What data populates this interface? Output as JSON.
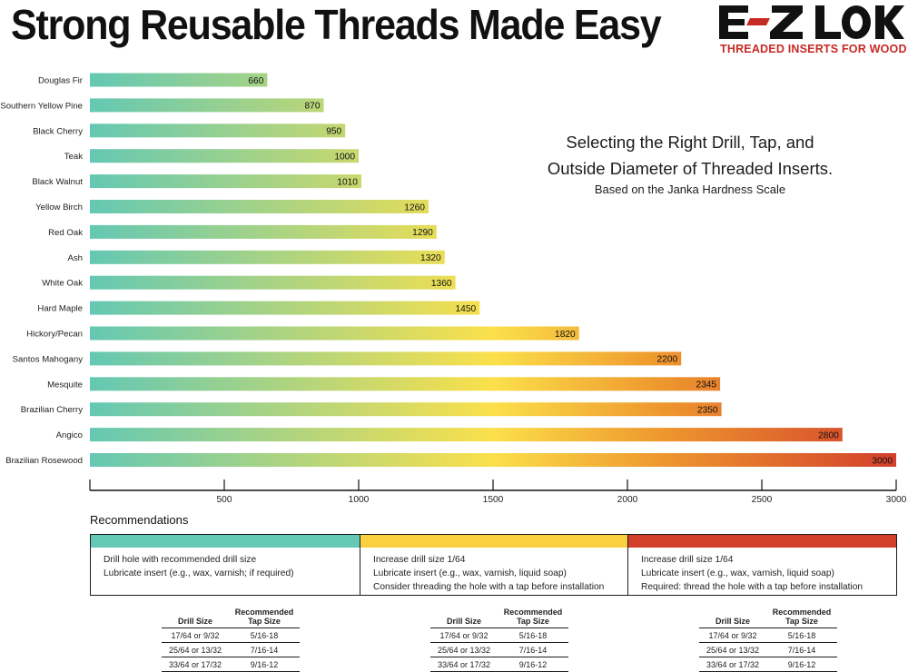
{
  "header": {
    "headline": "Strong Reusable Threads Made Easy",
    "logo_text": "E-Z LOK",
    "logo_tagline": "THREADED INSERTS FOR WOOD"
  },
  "info": {
    "line1": "Selecting the Right Drill, Tap, and",
    "line2": "Outside Diameter of Threaded Inserts.",
    "subtitle": "Based on the Janka Hardness Scale"
  },
  "colors": {
    "teal": "#64c8b4",
    "yellow": "#fbe04a",
    "orange": "#ef9a2e",
    "red": "#d2402c",
    "logo_red": "#c62a24"
  },
  "chart_data": {
    "type": "bar",
    "orientation": "horizontal",
    "categories": [
      "Douglas Fir",
      "Southern Yellow Pine",
      "Black Cherry",
      "Teak",
      "Black Walnut",
      "Yellow Birch",
      "Red Oak",
      "Ash",
      "White Oak",
      "Hard Maple",
      "Hickory/Pecan",
      "Santos Mahogany",
      "Mesquite",
      "Brazilian Cherry",
      "Angico",
      "Brazilian Rosewood"
    ],
    "values": [
      660,
      870,
      950,
      1000,
      1010,
      1260,
      1290,
      1320,
      1360,
      1450,
      1820,
      2200,
      2345,
      2350,
      2800,
      3000
    ],
    "data_labels": [
      "660",
      "870",
      "950",
      "1000",
      "1010",
      "1260",
      "1290",
      "1320",
      "1360",
      "1450",
      "1820",
      "2200",
      "2345",
      "2350",
      "2800",
      "3000"
    ],
    "xlim": [
      0,
      3000
    ],
    "xticks": [
      500,
      1000,
      1500,
      2000,
      2500,
      3000
    ],
    "xtick_labels": [
      "500",
      "1000",
      "1500",
      "2000",
      "2500",
      "3000"
    ],
    "color_scale": "teal-yellow-orange-red gradient by value",
    "grid": false,
    "legend": "none"
  },
  "recommendations": {
    "title": "Recommendations",
    "boxes": [
      {
        "color": "#64c8b4",
        "lines": [
          "Drill hole with recommended drill size",
          "Lubricate insert (e.g., wax, varnish; if required)"
        ]
      },
      {
        "color": "#fbd040",
        "lines": [
          "Increase drill size 1/64",
          "Lubricate insert (e.g., wax, varnish, liquid soap)",
          "Consider threading the hole with a tap before installation"
        ]
      },
      {
        "color": "#d2402c",
        "lines": [
          "Increase drill size 1/64",
          "Lubricate insert (e.g., wax, varnish, liquid soap)",
          "Required: thread the hole with a tap before installation"
        ]
      }
    ],
    "tables": [
      {
        "drill_header": "Drill Size",
        "tap_header_1": "Recommended",
        "tap_header_2": "Tap Size",
        "rows": [
          [
            "17/64 or 9/32",
            "5/16-18"
          ],
          [
            "25/64 or 13/32",
            "7/16-14"
          ],
          [
            "33/64 or 17/32",
            "9/16-12"
          ]
        ]
      },
      {
        "drill_header": "Drill Size",
        "tap_header_1": "Recommended",
        "tap_header_2": "Tap Size",
        "rows": [
          [
            "17/64 or 9/32",
            "5/16-18"
          ],
          [
            "25/64 or 13/32",
            "7/16-14"
          ],
          [
            "33/64 or 17/32",
            "9/16-12"
          ]
        ]
      },
      {
        "drill_header": "Drill Size",
        "tap_header_1": "Recommended",
        "tap_header_2": "Tap Size",
        "rows": [
          [
            "17/64 or 9/32",
            "5/16-18"
          ],
          [
            "25/64 or 13/32",
            "7/16-14"
          ],
          [
            "33/64 or 17/32",
            "9/16-12"
          ]
        ]
      }
    ]
  }
}
